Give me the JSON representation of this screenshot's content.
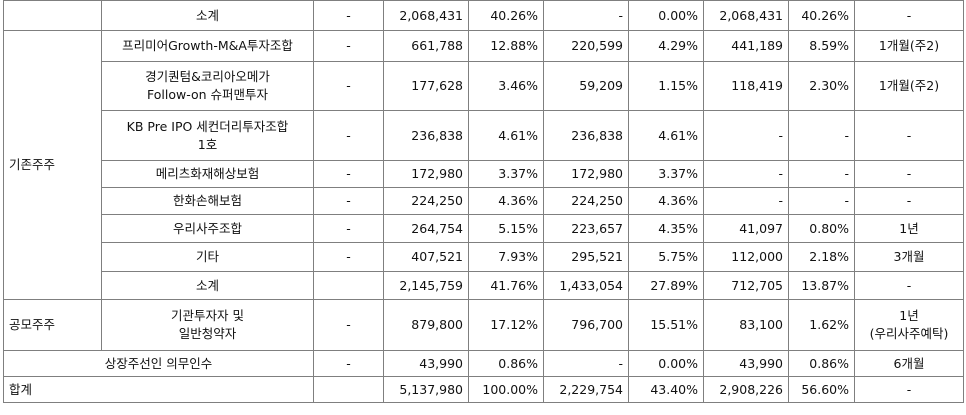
{
  "table": {
    "top_subtotal": {
      "label": "소계",
      "c1": "-",
      "c2": "2,068,431",
      "c3": "40.26%",
      "c4": "-",
      "c5": "0.00%",
      "c6": "2,068,431",
      "c7": "40.26%",
      "c8": "-"
    },
    "existing_group": {
      "label": "기존주주",
      "rows": [
        {
          "name_lines": [
            "프리미어Growth-M&A투자조합"
          ],
          "c1": "-",
          "c2": "661,788",
          "c3": "12.88%",
          "c4": "220,599",
          "c5": "4.29%",
          "c6": "441,189",
          "c7": "8.59%",
          "c8": "1개월(주2)"
        },
        {
          "name_lines": [
            "경기퀀텀&코리아오메가",
            "Follow-on 슈퍼맨투자"
          ],
          "c1": "-",
          "c2": "177,628",
          "c3": "3.46%",
          "c4": "59,209",
          "c5": "1.15%",
          "c6": "118,419",
          "c7": "2.30%",
          "c8": "1개월(주2)"
        },
        {
          "name_lines": [
            "KB Pre IPO 세컨더리투자조합",
            "1호"
          ],
          "c1": "-",
          "c2": "236,838",
          "c3": "4.61%",
          "c4": "236,838",
          "c5": "4.61%",
          "c6": "-",
          "c7": "-",
          "c8": "-"
        },
        {
          "name_lines": [
            "메리츠화재해상보험"
          ],
          "c1": "-",
          "c2": "172,980",
          "c3": "3.37%",
          "c4": "172,980",
          "c5": "3.37%",
          "c6": "-",
          "c7": "-",
          "c8": "-"
        },
        {
          "name_lines": [
            "한화손해보험"
          ],
          "c1": "-",
          "c2": "224,250",
          "c3": "4.36%",
          "c4": "224,250",
          "c5": "4.36%",
          "c6": "-",
          "c7": "-",
          "c8": "-"
        },
        {
          "name_lines": [
            "우리사주조합"
          ],
          "c1": "-",
          "c2": "264,754",
          "c3": "5.15%",
          "c4": "223,657",
          "c5": "4.35%",
          "c6": "41,097",
          "c7": "0.80%",
          "c8": "1년"
        },
        {
          "name_lines": [
            "기타"
          ],
          "c1": "-",
          "c2": "407,521",
          "c3": "7.93%",
          "c4": "295,521",
          "c5": "5.75%",
          "c6": "112,000",
          "c7": "2.18%",
          "c8": "3개월"
        },
        {
          "name_lines": [
            "소계"
          ],
          "c1": "",
          "c2": "2,145,759",
          "c3": "41.76%",
          "c4": "1,433,054",
          "c5": "27.89%",
          "c6": "712,705",
          "c7": "13.87%",
          "c8": "-"
        }
      ]
    },
    "public_group": {
      "label": "공모주주",
      "row": {
        "name_lines": [
          "기관투자자 및",
          "일반청약자"
        ],
        "c1": "-",
        "c2": "879,800",
        "c3": "17.12%",
        "c4": "796,700",
        "c5": "15.51%",
        "c6": "83,100",
        "c7": "1.62%",
        "c8_lines": [
          "1년",
          "(우리사주예탁)"
        ]
      }
    },
    "underwriter_row": {
      "label": "상장주선인 의무인수",
      "c1": "-",
      "c2": "43,990",
      "c3": "0.86%",
      "c4": "-",
      "c5": "0.00%",
      "c6": "43,990",
      "c7": "0.86%",
      "c8": "6개월"
    },
    "total_row": {
      "label": "합계",
      "c1": "",
      "c2": "5,137,980",
      "c3": "100.00%",
      "c4": "2,229,754",
      "c5": "43.40%",
      "c6": "2,908,226",
      "c7": "56.60%",
      "c8": "-"
    }
  }
}
